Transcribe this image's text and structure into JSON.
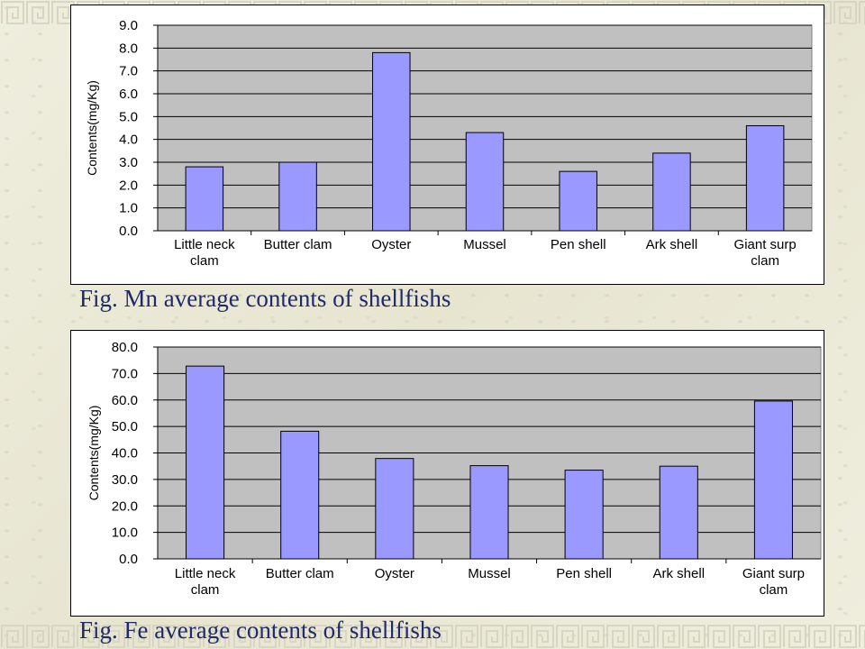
{
  "captions": {
    "mn": "Fig. Mn average contents of shellfishs",
    "fe": "Fig. Fe average contents of shellfishs"
  },
  "colors": {
    "bar_fill": "#9999ff",
    "bar_stroke": "#000000",
    "plot_area": "#c0c0c0",
    "caption": "#1f2a6b",
    "background": "#ecebd9"
  },
  "chart_data": [
    {
      "id": "mn",
      "type": "bar",
      "title": "",
      "xlabel": "",
      "ylabel": "Contents(mg/Kg)",
      "categories": [
        "Little neck clam",
        "Butter clam",
        "Oyster",
        "Mussel",
        "Pen shell",
        "Ark shell",
        "Giant surp clam"
      ],
      "category_lines": [
        [
          "Little neck",
          "clam"
        ],
        [
          "Butter clam"
        ],
        [
          "Oyster"
        ],
        [
          "Mussel"
        ],
        [
          "Pen shell"
        ],
        [
          "Ark shell"
        ],
        [
          "Giant surp",
          "clam"
        ]
      ],
      "values": [
        2.8,
        3.0,
        7.8,
        4.3,
        2.6,
        3.4,
        4.6
      ],
      "ylim": [
        0,
        9
      ],
      "yticks": [
        "0.0",
        "1.0",
        "2.0",
        "3.0",
        "4.0",
        "5.0",
        "6.0",
        "7.0",
        "8.0",
        "9.0"
      ],
      "grid": true,
      "legend": "none"
    },
    {
      "id": "fe",
      "type": "bar",
      "title": "",
      "xlabel": "",
      "ylabel": "Contents(mg/Kg)",
      "categories": [
        "Little neck clam",
        "Butter clam",
        "Oyster",
        "Mussel",
        "Pen shell",
        "Ark shell",
        "Giant surp clam"
      ],
      "category_lines": [
        [
          "Little neck",
          "clam"
        ],
        [
          "Butter clam"
        ],
        [
          "Oyster"
        ],
        [
          "Mussel"
        ],
        [
          "Pen shell"
        ],
        [
          "Ark shell"
        ],
        [
          "Giant surp",
          "clam"
        ]
      ],
      "values": [
        72.8,
        48.2,
        37.9,
        35.2,
        33.5,
        35.0,
        59.6
      ],
      "ylim": [
        0,
        80
      ],
      "yticks": [
        "0.0",
        "10.0",
        "20.0",
        "30.0",
        "40.0",
        "50.0",
        "60.0",
        "70.0",
        "80.0"
      ],
      "grid": true,
      "legend": "none"
    }
  ]
}
